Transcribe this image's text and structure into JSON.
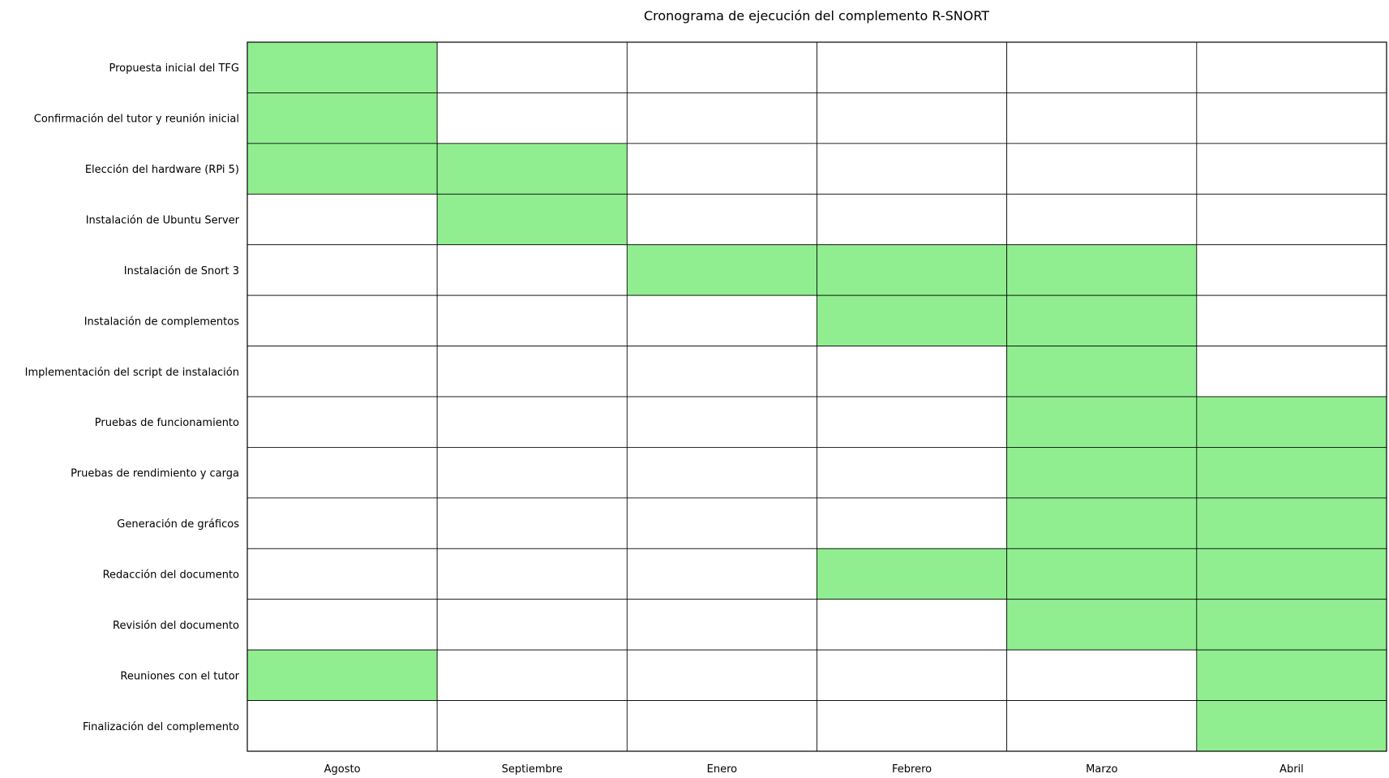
{
  "chart_data": {
    "type": "heatmap",
    "title": "Cronograma de ejecución del complemento R-SNORT",
    "xlabel": "",
    "ylabel": "",
    "categories": [
      "Agosto",
      "Septiembre",
      "Enero",
      "Febrero",
      "Marzo",
      "Abril"
    ],
    "tasks": [
      {
        "name": "Propuesta inicial del TFG",
        "months": [
          1,
          0,
          0,
          0,
          0,
          0
        ]
      },
      {
        "name": "Confirmación del tutor y reunión inicial",
        "months": [
          1,
          0,
          0,
          0,
          0,
          0
        ]
      },
      {
        "name": "Elección del hardware (RPi 5)",
        "months": [
          1,
          1,
          0,
          0,
          0,
          0
        ]
      },
      {
        "name": "Instalación de Ubuntu Server",
        "months": [
          0,
          1,
          0,
          0,
          0,
          0
        ]
      },
      {
        "name": "Instalación de Snort 3",
        "months": [
          0,
          0,
          1,
          1,
          1,
          0
        ]
      },
      {
        "name": "Instalación de complementos",
        "months": [
          0,
          0,
          0,
          1,
          1,
          0
        ]
      },
      {
        "name": "Implementación del script de instalación",
        "months": [
          0,
          0,
          0,
          0,
          1,
          0
        ]
      },
      {
        "name": "Pruebas de funcionamiento",
        "months": [
          0,
          0,
          0,
          0,
          1,
          1
        ]
      },
      {
        "name": "Pruebas de rendimiento y carga",
        "months": [
          0,
          0,
          0,
          0,
          1,
          1
        ]
      },
      {
        "name": "Generación de gráficos",
        "months": [
          0,
          0,
          0,
          0,
          1,
          1
        ]
      },
      {
        "name": "Redacción del documento",
        "months": [
          0,
          0,
          0,
          1,
          1,
          1
        ]
      },
      {
        "name": "Revisión del documento",
        "months": [
          0,
          0,
          0,
          0,
          1,
          1
        ]
      },
      {
        "name": "Reuniones con el tutor",
        "months": [
          1,
          0,
          0,
          0,
          0,
          1
        ]
      },
      {
        "name": "Finalización del complemento",
        "months": [
          0,
          0,
          0,
          0,
          0,
          1
        ]
      }
    ],
    "colors": {
      "active": "#90ee90",
      "inactive": "#ffffff",
      "grid": "#000000"
    },
    "grid": true
  }
}
